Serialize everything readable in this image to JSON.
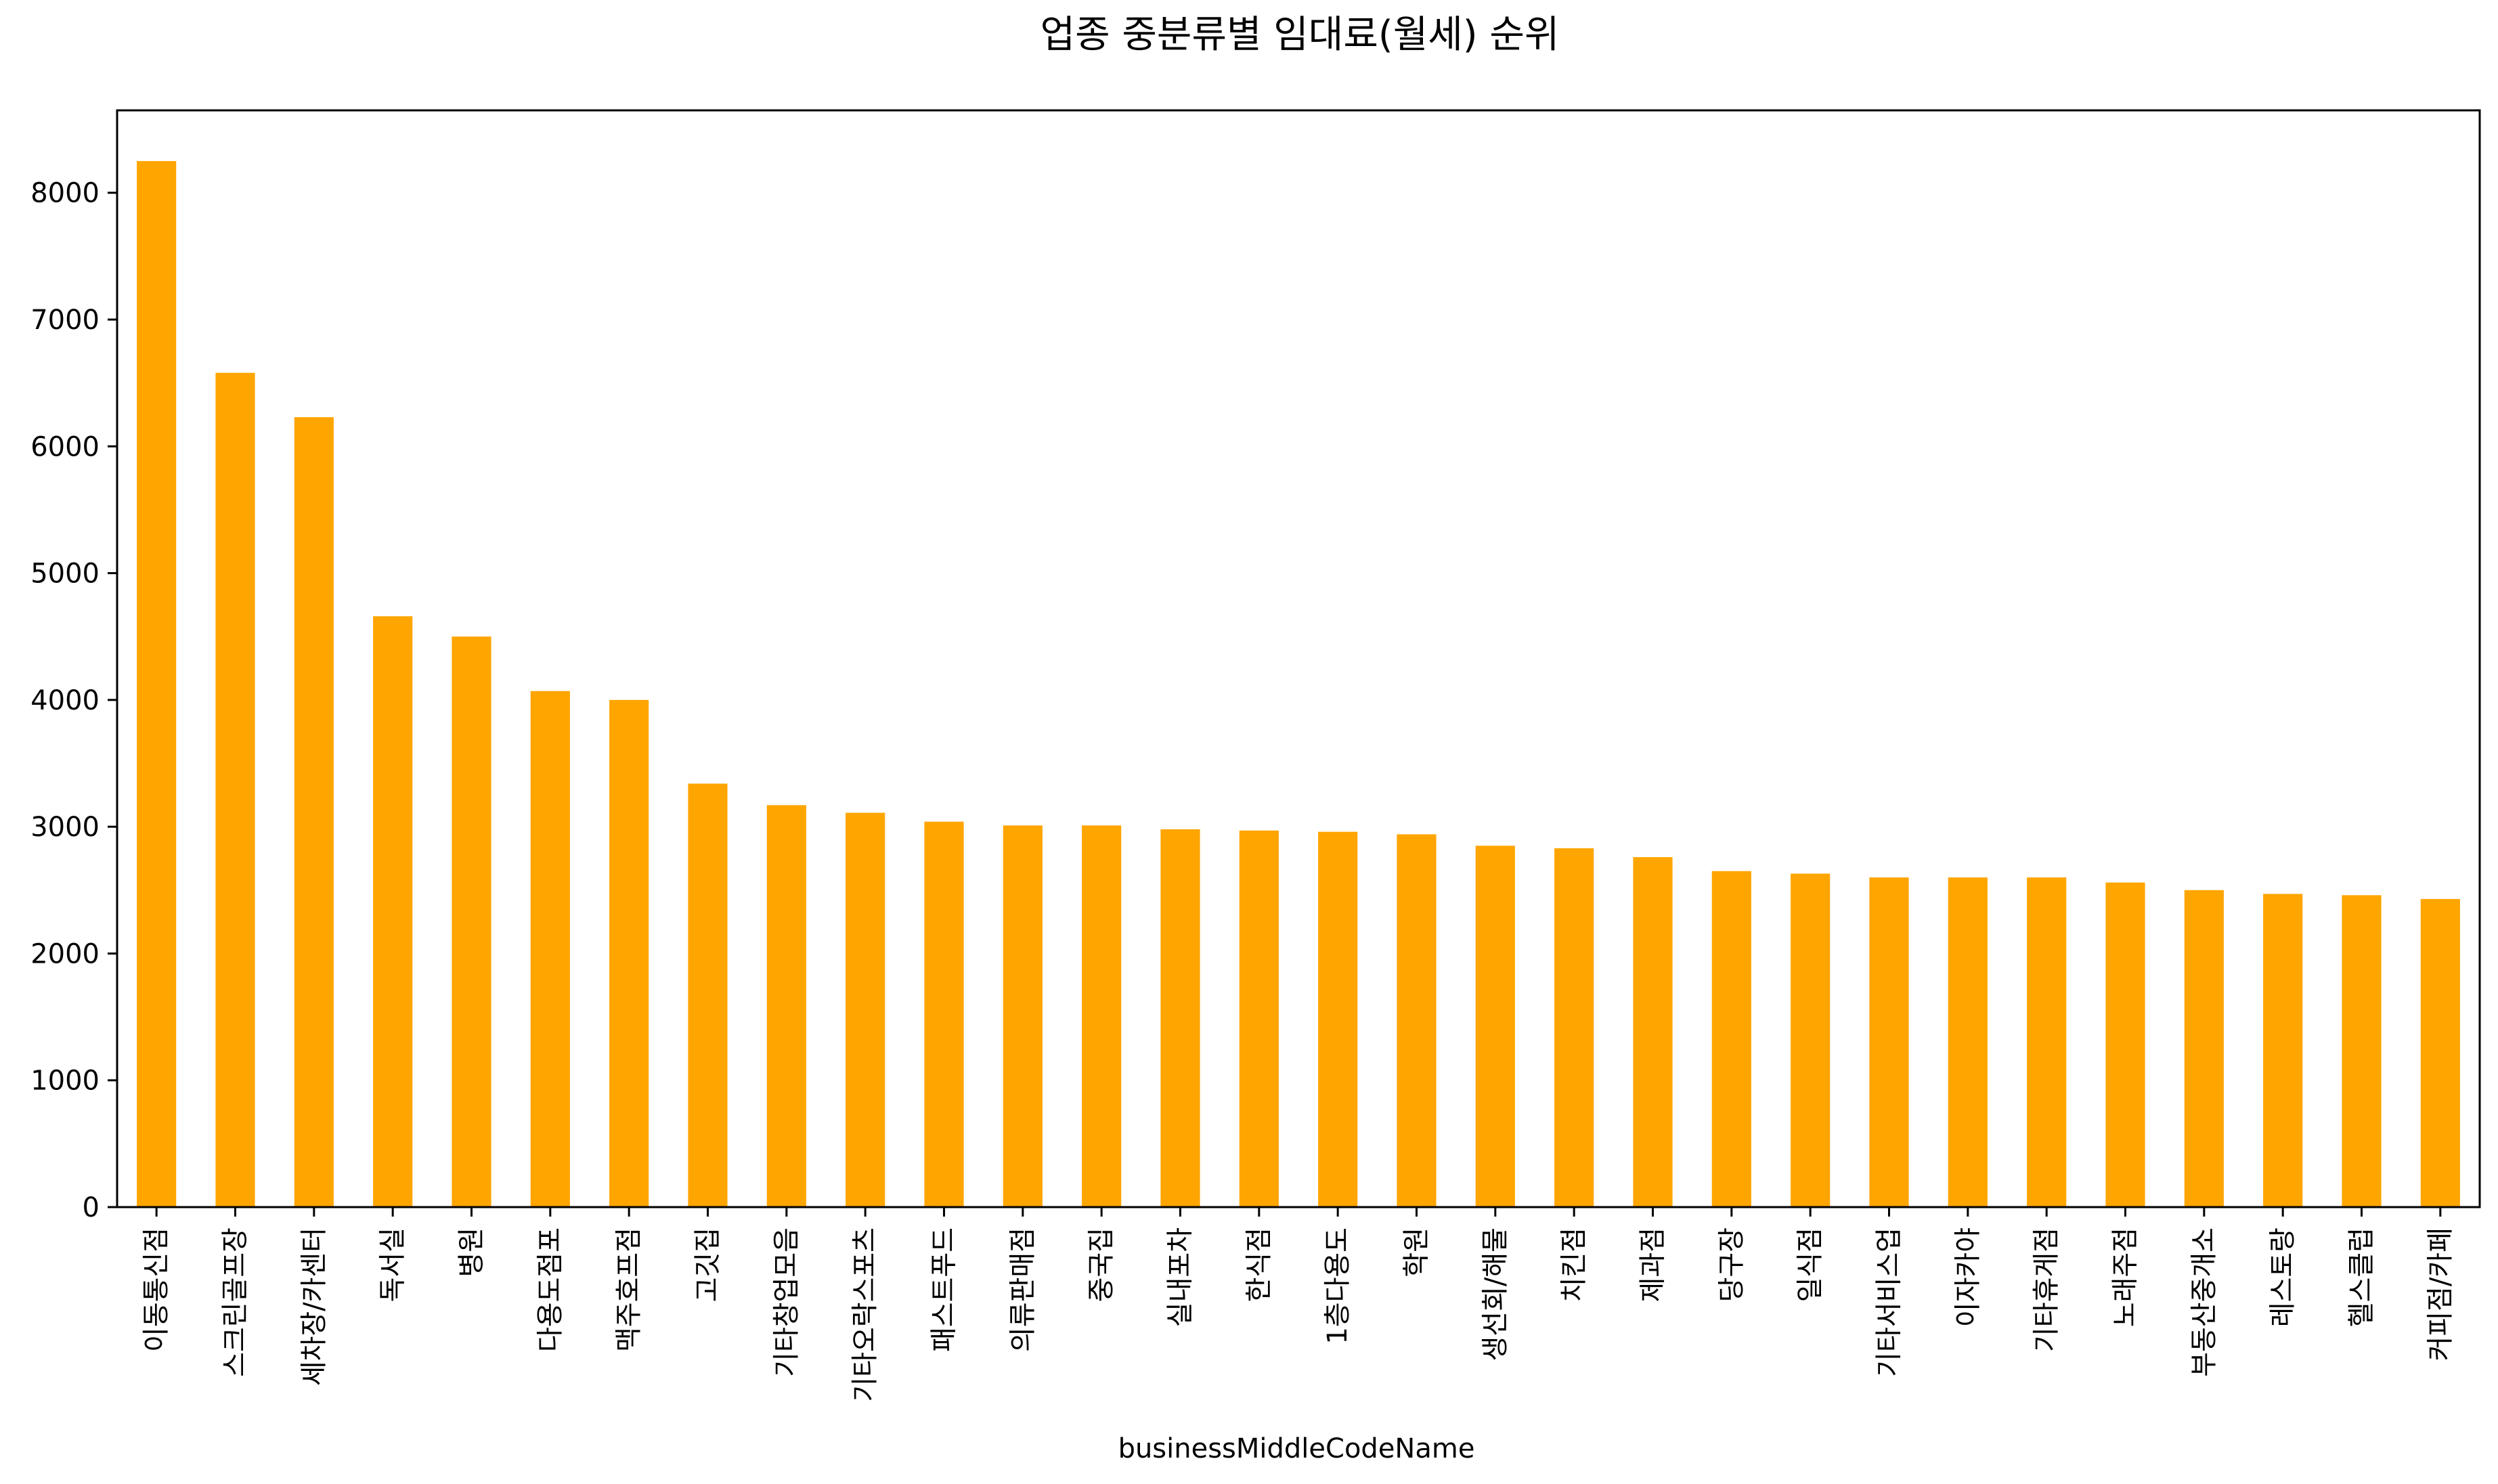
{
  "chart_data": {
    "type": "bar",
    "title": "업종 중분류별 임대료(월세) 순위",
    "xlabel": "businessMiddleCodeName",
    "ylabel": "",
    "ylim": [
      0,
      8650
    ],
    "yticks": [
      0,
      1000,
      2000,
      3000,
      4000,
      5000,
      6000,
      7000,
      8000
    ],
    "ytick_labels": [
      "0",
      "1000",
      "2000",
      "3000",
      "4000",
      "5000",
      "6000",
      "7000",
      "8000"
    ],
    "bar_color": "#ffa500",
    "grid": false,
    "legend": "none",
    "categories": [
      "이동통신점",
      "스크린골프장",
      "세차장/카센터",
      "독서실",
      "병원",
      "다용도점포",
      "맥주호프점",
      "고깃집",
      "기타창업모음",
      "기타오락스포츠",
      "패스트푸드",
      "의류판매점",
      "중국집",
      "실내포차",
      "한식점",
      "1층다용도",
      "학원",
      "생선회/해물",
      "치킨점",
      "제과점",
      "당구장",
      "일식점",
      "기타서비스업",
      "이자카야",
      "기타휴게점",
      "노래주점",
      "부동산중개소",
      "레스토랑",
      "헬스클럽",
      "커피점/카페"
    ],
    "values": [
      8250,
      6580,
      6230,
      4660,
      4500,
      4070,
      4000,
      3340,
      3170,
      3110,
      3040,
      3010,
      3010,
      2980,
      2970,
      2960,
      2940,
      2850,
      2830,
      2760,
      2650,
      2630,
      2600,
      2600,
      2600,
      2560,
      2500,
      2470,
      2460,
      2430
    ]
  }
}
